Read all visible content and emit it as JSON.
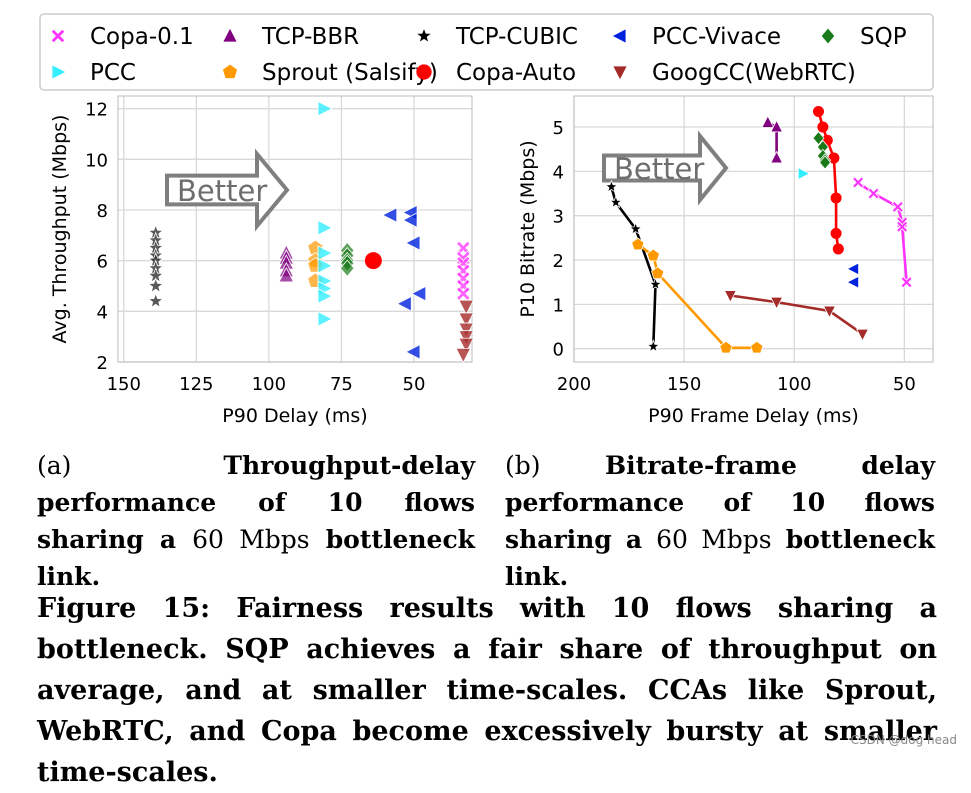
{
  "legend": {
    "entries": [
      {
        "label": "Copa-0.1",
        "marker": "x",
        "color": "#ff33ff"
      },
      {
        "label": "TCP-BBR",
        "marker": "triangle-up",
        "color": "#800080"
      },
      {
        "label": "TCP-CUBIC",
        "marker": "star",
        "color": "#000000"
      },
      {
        "label": "PCC-Vivace",
        "marker": "triangle-left",
        "color": "#0022dd"
      },
      {
        "label": "SQP",
        "marker": "diamond",
        "color": "#1a7a1a"
      },
      {
        "label": "PCC",
        "marker": "triangle-right",
        "color": "#33eeff"
      },
      {
        "label": "Sprout (Salsify)",
        "marker": "pentagon",
        "color": "#ff9900"
      },
      {
        "label": "Copa-Auto",
        "marker": "circle",
        "color": "#ff0000"
      },
      {
        "label": "GoogCC(WebRTC)",
        "marker": "triangle-down",
        "color": "#a52a2a"
      }
    ]
  },
  "chart_data": [
    {
      "type": "scatter",
      "id": "a",
      "xlabel": "P90 Delay (ms)",
      "ylabel": "Avg. Throughput (Mbps)",
      "xlim": [
        152,
        30
      ],
      "ylim": [
        2,
        12.5
      ],
      "xticks": [
        150,
        125,
        100,
        75,
        50
      ],
      "yticks": [
        2,
        4,
        6,
        8,
        10,
        12
      ],
      "annotation": "Better",
      "series": [
        {
          "name": "TCP-CUBIC",
          "marker": "star",
          "color": "#222222",
          "alpha": 0.75,
          "points": [
            [
              139,
              7.1
            ],
            [
              139,
              6.8
            ],
            [
              139,
              6.5
            ],
            [
              139,
              6.2
            ],
            [
              139,
              6.0
            ],
            [
              139,
              5.7
            ],
            [
              139,
              5.4
            ],
            [
              139,
              5.0
            ],
            [
              139,
              4.4
            ]
          ]
        },
        {
          "name": "TCP-BBR",
          "marker": "triangle-up",
          "color": "#800080",
          "alpha": 0.7,
          "points": [
            [
              94,
              6.3
            ],
            [
              94,
              6.1
            ],
            [
              94,
              5.9
            ],
            [
              94,
              5.6
            ],
            [
              94,
              5.4
            ]
          ]
        },
        {
          "name": "Sprout (Salsify)",
          "marker": "pentagon",
          "color": "#ff9900",
          "alpha": 0.7,
          "points": [
            [
              84,
              6.5
            ],
            [
              84,
              6.0
            ],
            [
              84,
              5.8
            ],
            [
              84,
              5.2
            ]
          ]
        },
        {
          "name": "PCC",
          "marker": "triangle-right",
          "color": "#33eeff",
          "alpha": 0.8,
          "points": [
            [
              81,
              12.0
            ],
            [
              81,
              7.3
            ],
            [
              81,
              6.3
            ],
            [
              81,
              5.8
            ],
            [
              81,
              5.2
            ],
            [
              81,
              4.9
            ],
            [
              81,
              4.6
            ],
            [
              81,
              3.7
            ]
          ]
        },
        {
          "name": "SQP",
          "marker": "diamond",
          "color": "#1a7a1a",
          "alpha": 0.7,
          "points": [
            [
              73,
              6.4
            ],
            [
              73,
              6.2
            ],
            [
              73,
              6.0
            ],
            [
              73,
              5.9
            ],
            [
              73,
              5.7
            ]
          ]
        },
        {
          "name": "Copa-Auto",
          "marker": "circle",
          "color": "#ff0000",
          "alpha": 1,
          "points": [
            [
              64,
              6.0
            ]
          ]
        },
        {
          "name": "PCC-Vivace",
          "marker": "triangle-left",
          "color": "#0022dd",
          "alpha": 0.8,
          "points": [
            [
              58,
              7.8
            ],
            [
              51,
              7.9
            ],
            [
              51,
              7.6
            ],
            [
              50,
              6.7
            ],
            [
              53,
              4.3
            ],
            [
              48,
              4.7
            ],
            [
              50,
              2.4
            ]
          ]
        },
        {
          "name": "Copa-0.1",
          "marker": "x",
          "color": "#ff33ff",
          "alpha": 0.75,
          "points": [
            [
              33,
              6.5
            ],
            [
              33,
              6.1
            ],
            [
              33,
              5.9
            ],
            [
              33,
              5.6
            ],
            [
              33,
              5.3
            ],
            [
              33,
              5.0
            ],
            [
              33,
              4.7
            ]
          ]
        },
        {
          "name": "GoogCC(WebRTC)",
          "marker": "triangle-down",
          "color": "#a52a2a",
          "alpha": 0.8,
          "points": [
            [
              32,
              4.2
            ],
            [
              32,
              3.7
            ],
            [
              32,
              3.3
            ],
            [
              32,
              3.0
            ],
            [
              32,
              2.7
            ],
            [
              33,
              2.3
            ]
          ]
        }
      ]
    },
    {
      "type": "line",
      "id": "b",
      "xlabel": "P90 Frame Delay (ms)",
      "ylabel": "P10 Bitrate (Mbps)",
      "xlim": [
        200,
        37
      ],
      "ylim": [
        -0.3,
        5.7
      ],
      "xticks": [
        200,
        150,
        100,
        50
      ],
      "yticks": [
        0,
        1,
        2,
        3,
        4,
        5
      ],
      "annotation": "Better",
      "series": [
        {
          "name": "TCP-BBR",
          "marker": "triangle-up",
          "color": "#800080",
          "line": true,
          "points": [
            [
              112,
              5.1
            ],
            [
              108,
              5.0
            ],
            [
              108,
              4.3
            ]
          ]
        },
        {
          "name": "PCC",
          "marker": "triangle-right",
          "color": "#33eeff",
          "line": false,
          "points": [
            [
              96,
              3.95
            ]
          ]
        },
        {
          "name": "Copa-Auto",
          "marker": "circle",
          "color": "#ff0000",
          "line": true,
          "points": [
            [
              89,
              5.35
            ],
            [
              87,
              5.0
            ],
            [
              85,
              4.7
            ],
            [
              82,
              4.3
            ],
            [
              81,
              3.4
            ],
            [
              81,
              2.6
            ],
            [
              80,
              2.25
            ]
          ]
        },
        {
          "name": "SQP",
          "marker": "diamond",
          "color": "#1a7a1a",
          "line": true,
          "points": [
            [
              89,
              4.75
            ],
            [
              87,
              4.55
            ],
            [
              87,
              4.35
            ],
            [
              86,
              4.25
            ],
            [
              86,
              4.2
            ]
          ]
        },
        {
          "name": "Copa-0.1",
          "marker": "x",
          "color": "#ff33ff",
          "line": true,
          "points": [
            [
              71,
              3.75
            ],
            [
              64,
              3.5
            ],
            [
              53,
              3.2
            ],
            [
              51,
              2.85
            ],
            [
              51,
              2.75
            ],
            [
              49,
              1.5
            ]
          ]
        },
        {
          "name": "PCC-Vivace",
          "marker": "triangle-left",
          "color": "#0022dd",
          "line": false,
          "points": [
            [
              73,
              1.8
            ],
            [
              73,
              1.5
            ]
          ]
        },
        {
          "name": "TCP-CUBIC",
          "marker": "star",
          "color": "#000000",
          "line": true,
          "points": [
            [
              183,
              3.65
            ],
            [
              181,
              3.3
            ],
            [
              172,
              2.7
            ],
            [
              163,
              1.45
            ],
            [
              164,
              0.05
            ]
          ]
        },
        {
          "name": "Sprout (Salsify)",
          "marker": "pentagon",
          "color": "#ff9900",
          "line": true,
          "points": [
            [
              171,
              2.35
            ],
            [
              164,
              2.1
            ],
            [
              162,
              1.7
            ],
            [
              131,
              0.02
            ],
            [
              117,
              0.02
            ]
          ]
        },
        {
          "name": "GoogCC(WebRTC)",
          "marker": "triangle-down",
          "color": "#a52a2a",
          "line": true,
          "points": [
            [
              129,
              1.2
            ],
            [
              108,
              1.05
            ],
            [
              84,
              0.85
            ],
            [
              69,
              0.33
            ]
          ]
        }
      ]
    }
  ],
  "captions": {
    "a_prefix": "(a)",
    "a_text": "Throughput-delay performance of 10 flows sharing a",
    "a_link": "60 Mbps",
    "a_suffix": "bottleneck link.",
    "b_prefix": "(b)",
    "b_text": "Bitrate-frame delay performance of 10 flows sharing a",
    "b_link": "60 Mbps",
    "b_suffix": "bottleneck link.",
    "main": "Figure 15: Fairness results with 10 flows sharing a bottleneck. SQP achieves a fair share of throughput on average, and at smaller time-scales. CCAs like Sprout, WebRTC, and Copa become excessively bursty at smaller time-scales."
  },
  "watermark": "CSDN @dog head"
}
